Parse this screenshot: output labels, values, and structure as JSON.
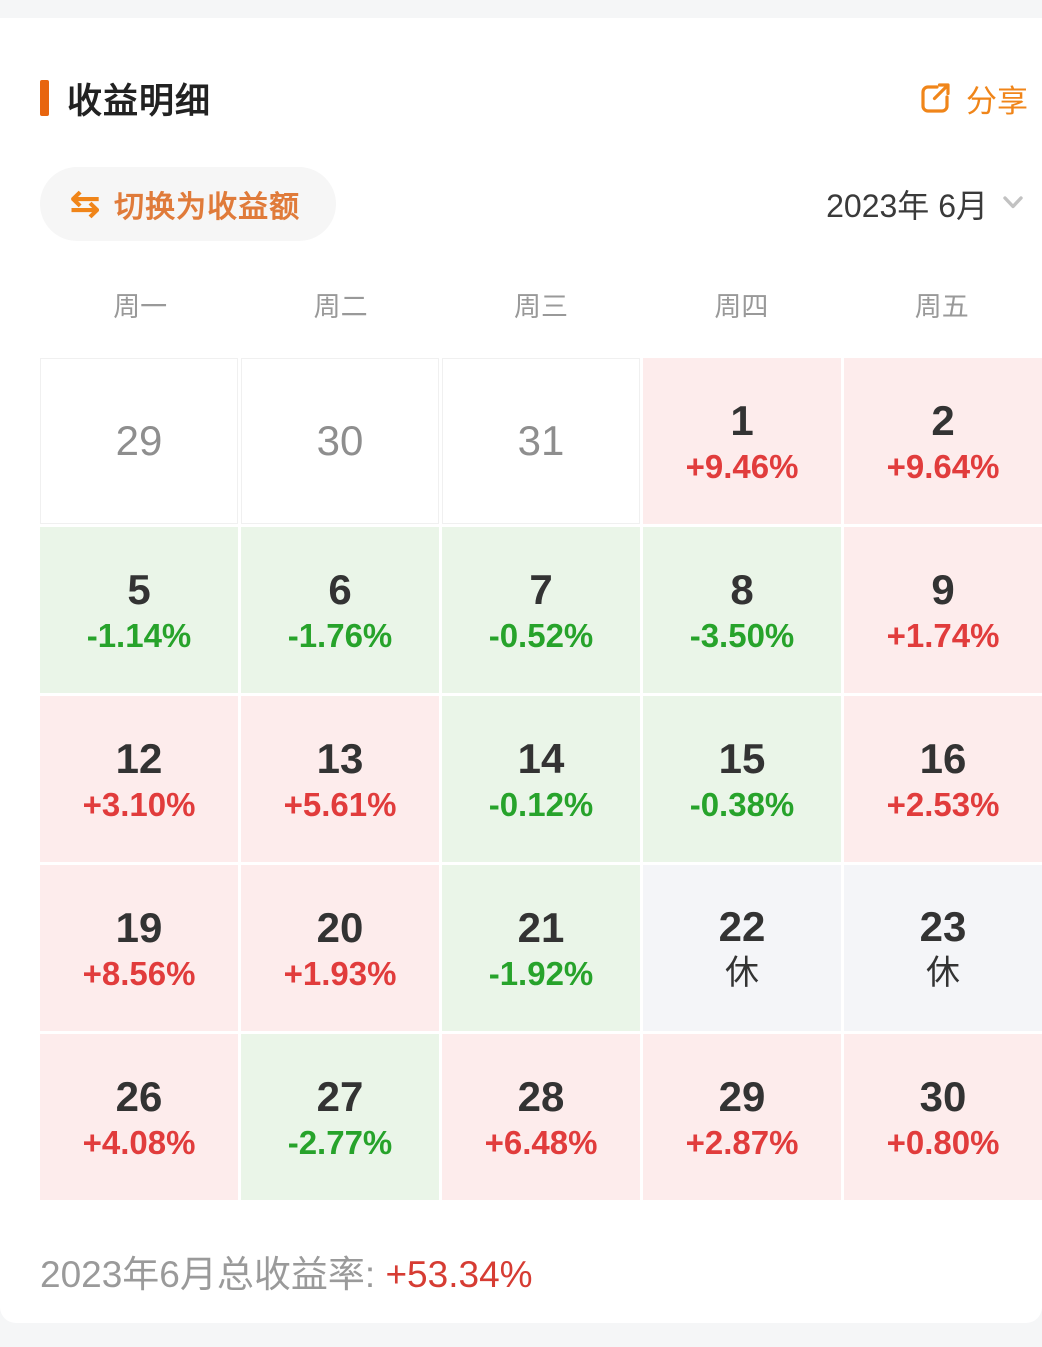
{
  "colors": {
    "page-bg": "#f5f6f7",
    "card-bg": "#ffffff",
    "accent": "#f08519",
    "accent-dark": "#e8650f",
    "gain-bg": "#fdecec",
    "gain-fg": "#e13c3c",
    "loss-bg": "#eaf5e8",
    "loss-fg": "#27a32b",
    "rest-bg": "#f4f5f8"
  },
  "header": {
    "title": "收益明细",
    "share_label": "分享",
    "share_icon": "share-external-icon"
  },
  "toolbar": {
    "toggle_label": "切换为收益额",
    "swap_icon": "⇆",
    "month_selector": "2023年 6月",
    "chevron_icon": "chevron-down-icon"
  },
  "calendar": {
    "weekdays": [
      "周一",
      "周二",
      "周三",
      "周四",
      "周五"
    ],
    "cells": [
      {
        "date": "29",
        "value": "",
        "type": "muted"
      },
      {
        "date": "30",
        "value": "",
        "type": "muted"
      },
      {
        "date": "31",
        "value": "",
        "type": "muted"
      },
      {
        "date": "1",
        "value": "+9.46%",
        "type": "gain"
      },
      {
        "date": "2",
        "value": "+9.64%",
        "type": "gain"
      },
      {
        "date": "5",
        "value": "-1.14%",
        "type": "loss"
      },
      {
        "date": "6",
        "value": "-1.76%",
        "type": "loss"
      },
      {
        "date": "7",
        "value": "-0.52%",
        "type": "loss"
      },
      {
        "date": "8",
        "value": "-3.50%",
        "type": "loss"
      },
      {
        "date": "9",
        "value": "+1.74%",
        "type": "gain"
      },
      {
        "date": "12",
        "value": "+3.10%",
        "type": "gain"
      },
      {
        "date": "13",
        "value": "+5.61%",
        "type": "gain"
      },
      {
        "date": "14",
        "value": "-0.12%",
        "type": "loss"
      },
      {
        "date": "15",
        "value": "-0.38%",
        "type": "loss"
      },
      {
        "date": "16",
        "value": "+2.53%",
        "type": "gain"
      },
      {
        "date": "19",
        "value": "+8.56%",
        "type": "gain"
      },
      {
        "date": "20",
        "value": "+1.93%",
        "type": "gain"
      },
      {
        "date": "21",
        "value": "-1.92%",
        "type": "loss"
      },
      {
        "date": "22",
        "value": "休",
        "type": "rest"
      },
      {
        "date": "23",
        "value": "休",
        "type": "rest"
      },
      {
        "date": "26",
        "value": "+4.08%",
        "type": "gain"
      },
      {
        "date": "27",
        "value": "-2.77%",
        "type": "loss"
      },
      {
        "date": "28",
        "value": "+6.48%",
        "type": "gain"
      },
      {
        "date": "29",
        "value": "+2.87%",
        "type": "gain"
      },
      {
        "date": "30",
        "value": "+0.80%",
        "type": "gain"
      }
    ]
  },
  "summary": {
    "label": "2023年6月总收益率:",
    "value": "+53.34%"
  }
}
